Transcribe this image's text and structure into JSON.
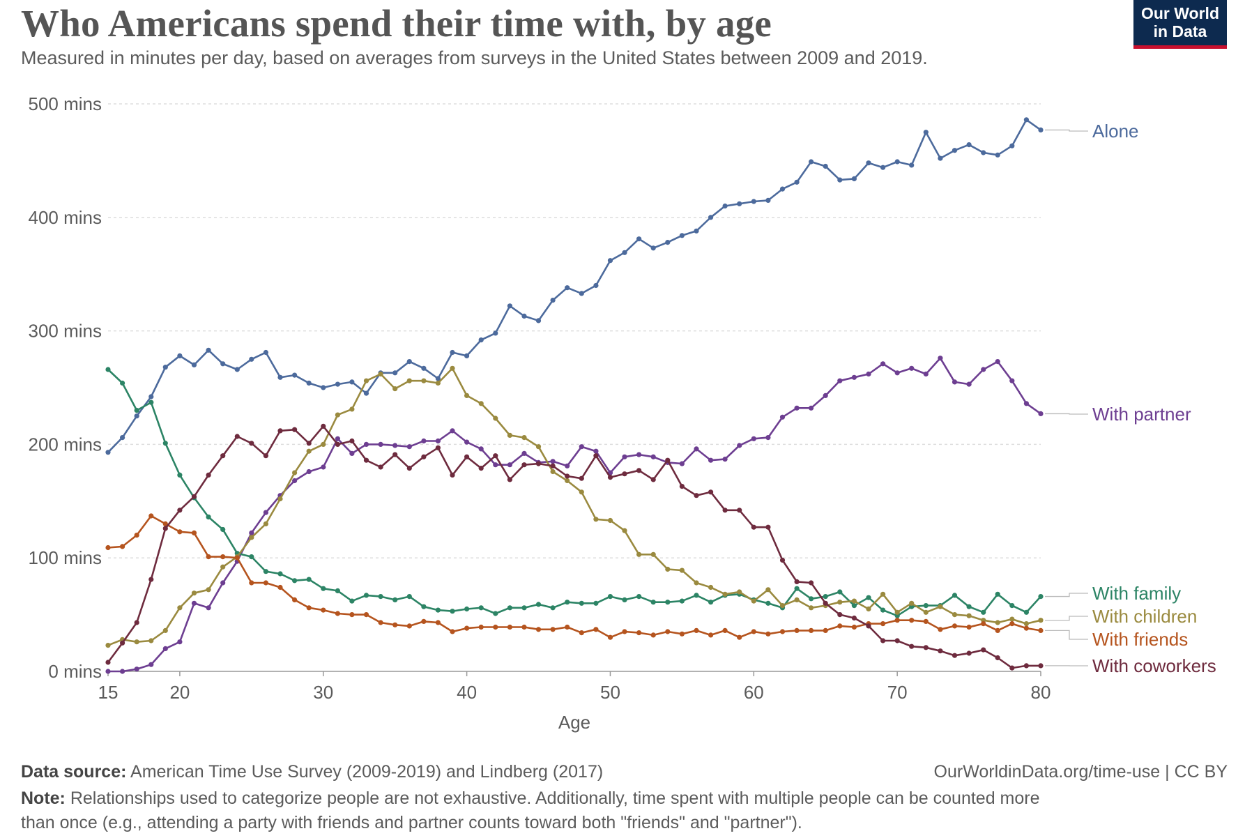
{
  "title": "Who Americans spend their time with, by age",
  "subtitle": "Measured in minutes per day, based on averages from surveys in the United States between 2009 and 2019.",
  "logo": {
    "line1": "Our World",
    "line2": "in Data",
    "bg_color": "#0d2a4f",
    "accent_color": "#c8102e"
  },
  "footer": {
    "source_label": "Data source:",
    "source_text": "American Time Use Survey (2009-2019) and Lindberg (2017)",
    "url_text": "OurWorldinData.org/time-use | CC BY",
    "note_label": "Note:",
    "note_line1": "Relationships used to categorize people are not exhaustive. Additionally, time spent with multiple people can be counted more",
    "note_line2": "than once (e.g., attending a party with friends and partner counts toward both \"friends\" and \"partner\")."
  },
  "chart_data": {
    "type": "line",
    "xlabel": "Age",
    "x_ticks": [
      15,
      20,
      30,
      40,
      50,
      60,
      70,
      80
    ],
    "xlim": [
      15,
      80
    ],
    "y_ticks": [
      0,
      100,
      200,
      300,
      400,
      500
    ],
    "y_tick_labels": [
      "0 mins",
      "100 mins",
      "200 mins",
      "300 mins",
      "400 mins",
      "500 mins"
    ],
    "ylim": [
      0,
      500
    ],
    "grid": "horizontal dashed",
    "legend": "right-end labels",
    "x": [
      15,
      16,
      17,
      18,
      19,
      20,
      21,
      22,
      23,
      24,
      25,
      26,
      27,
      28,
      29,
      30,
      31,
      32,
      33,
      34,
      35,
      36,
      37,
      38,
      39,
      40,
      41,
      42,
      43,
      44,
      45,
      46,
      47,
      48,
      49,
      50,
      51,
      52,
      53,
      54,
      55,
      56,
      57,
      58,
      59,
      60,
      61,
      62,
      63,
      64,
      65,
      66,
      67,
      68,
      69,
      70,
      71,
      72,
      73,
      74,
      75,
      76,
      77,
      78,
      79,
      80
    ],
    "series": [
      {
        "name": "Alone",
        "color": "#4c6a9c",
        "values": [
          193,
          206,
          225,
          242,
          268,
          278,
          270,
          283,
          271,
          266,
          275,
          281,
          259,
          261,
          254,
          250,
          253,
          255,
          245,
          263,
          263,
          273,
          267,
          258,
          281,
          278,
          292,
          298,
          322,
          313,
          309,
          327,
          338,
          333,
          340,
          362,
          369,
          381,
          373,
          378,
          384,
          388,
          400,
          410,
          412,
          414,
          415,
          425,
          431,
          449,
          445,
          433,
          434,
          448,
          444,
          449,
          446,
          475,
          452,
          459,
          464,
          457,
          455,
          463,
          486,
          477
        ]
      },
      {
        "name": "With partner",
        "color": "#6d3e91",
        "values": [
          0,
          0,
          2,
          6,
          20,
          26,
          60,
          56,
          78,
          97,
          122,
          140,
          155,
          168,
          176,
          180,
          205,
          192,
          200,
          200,
          199,
          198,
          203,
          203,
          212,
          202,
          196,
          182,
          182,
          192,
          184,
          185,
          181,
          198,
          194,
          175,
          189,
          191,
          189,
          184,
          183,
          196,
          186,
          187,
          199,
          205,
          206,
          224,
          232,
          232,
          243,
          256,
          259,
          262,
          271,
          263,
          267,
          262,
          276,
          255,
          253,
          266,
          273,
          256,
          236,
          227
        ]
      },
      {
        "name": "With family",
        "color": "#2c8465",
        "values": [
          266,
          254,
          230,
          237,
          201,
          173,
          153,
          136,
          125,
          104,
          101,
          88,
          86,
          80,
          81,
          73,
          71,
          62,
          67,
          66,
          63,
          66,
          57,
          54,
          53,
          55,
          56,
          51,
          56,
          56,
          59,
          56,
          61,
          60,
          60,
          66,
          63,
          66,
          61,
          61,
          62,
          67,
          61,
          67,
          68,
          63,
          60,
          56,
          73,
          64,
          66,
          70,
          58,
          65,
          54,
          49,
          57,
          58,
          58,
          67,
          57,
          52,
          68,
          58,
          52,
          66
        ]
      },
      {
        "name": "With children",
        "color": "#9a8a3f",
        "values": [
          23,
          28,
          26,
          27,
          36,
          56,
          69,
          72,
          92,
          101,
          118,
          130,
          152,
          175,
          194,
          200,
          226,
          231,
          256,
          262,
          249,
          256,
          256,
          254,
          267,
          243,
          236,
          223,
          208,
          206,
          198,
          176,
          168,
          158,
          134,
          133,
          124,
          103,
          103,
          90,
          89,
          78,
          74,
          68,
          70,
          62,
          72,
          58,
          63,
          56,
          58,
          61,
          62,
          55,
          68,
          52,
          60,
          52,
          57,
          50,
          49,
          45,
          43,
          46,
          42,
          45
        ]
      },
      {
        "name": "With friends",
        "color": "#b5541e",
        "values": [
          109,
          110,
          120,
          137,
          130,
          123,
          122,
          101,
          101,
          100,
          78,
          78,
          74,
          63,
          56,
          54,
          51,
          50,
          50,
          43,
          41,
          40,
          44,
          43,
          35,
          38,
          39,
          39,
          39,
          39,
          37,
          37,
          39,
          34,
          37,
          30,
          35,
          34,
          32,
          35,
          33,
          36,
          32,
          36,
          30,
          35,
          33,
          35,
          36,
          36,
          36,
          40,
          39,
          42,
          42,
          45,
          45,
          44,
          37,
          40,
          39,
          42,
          36,
          42,
          38,
          36
        ]
      },
      {
        "name": "With coworkers",
        "color": "#6e2b3e",
        "values": [
          8,
          25,
          43,
          81,
          126,
          142,
          154,
          173,
          190,
          207,
          201,
          190,
          212,
          213,
          201,
          216,
          200,
          203,
          186,
          180,
          191,
          179,
          189,
          197,
          173,
          189,
          179,
          190,
          169,
          182,
          183,
          181,
          172,
          170,
          190,
          171,
          174,
          177,
          169,
          186,
          163,
          155,
          158,
          142,
          142,
          127,
          127,
          98,
          79,
          78,
          60,
          50,
          47,
          40,
          27,
          27,
          22,
          21,
          18,
          14,
          16,
          19,
          12,
          3,
          5,
          5
        ]
      }
    ],
    "end_labels": [
      {
        "name": "Alone",
        "value": 477
      },
      {
        "name": "With partner",
        "value": 227
      },
      {
        "name": "With family",
        "value": 66
      },
      {
        "name": "With children",
        "value": 45
      },
      {
        "name": "With friends",
        "value": 36
      },
      {
        "name": "With coworkers",
        "value": 5
      }
    ]
  }
}
